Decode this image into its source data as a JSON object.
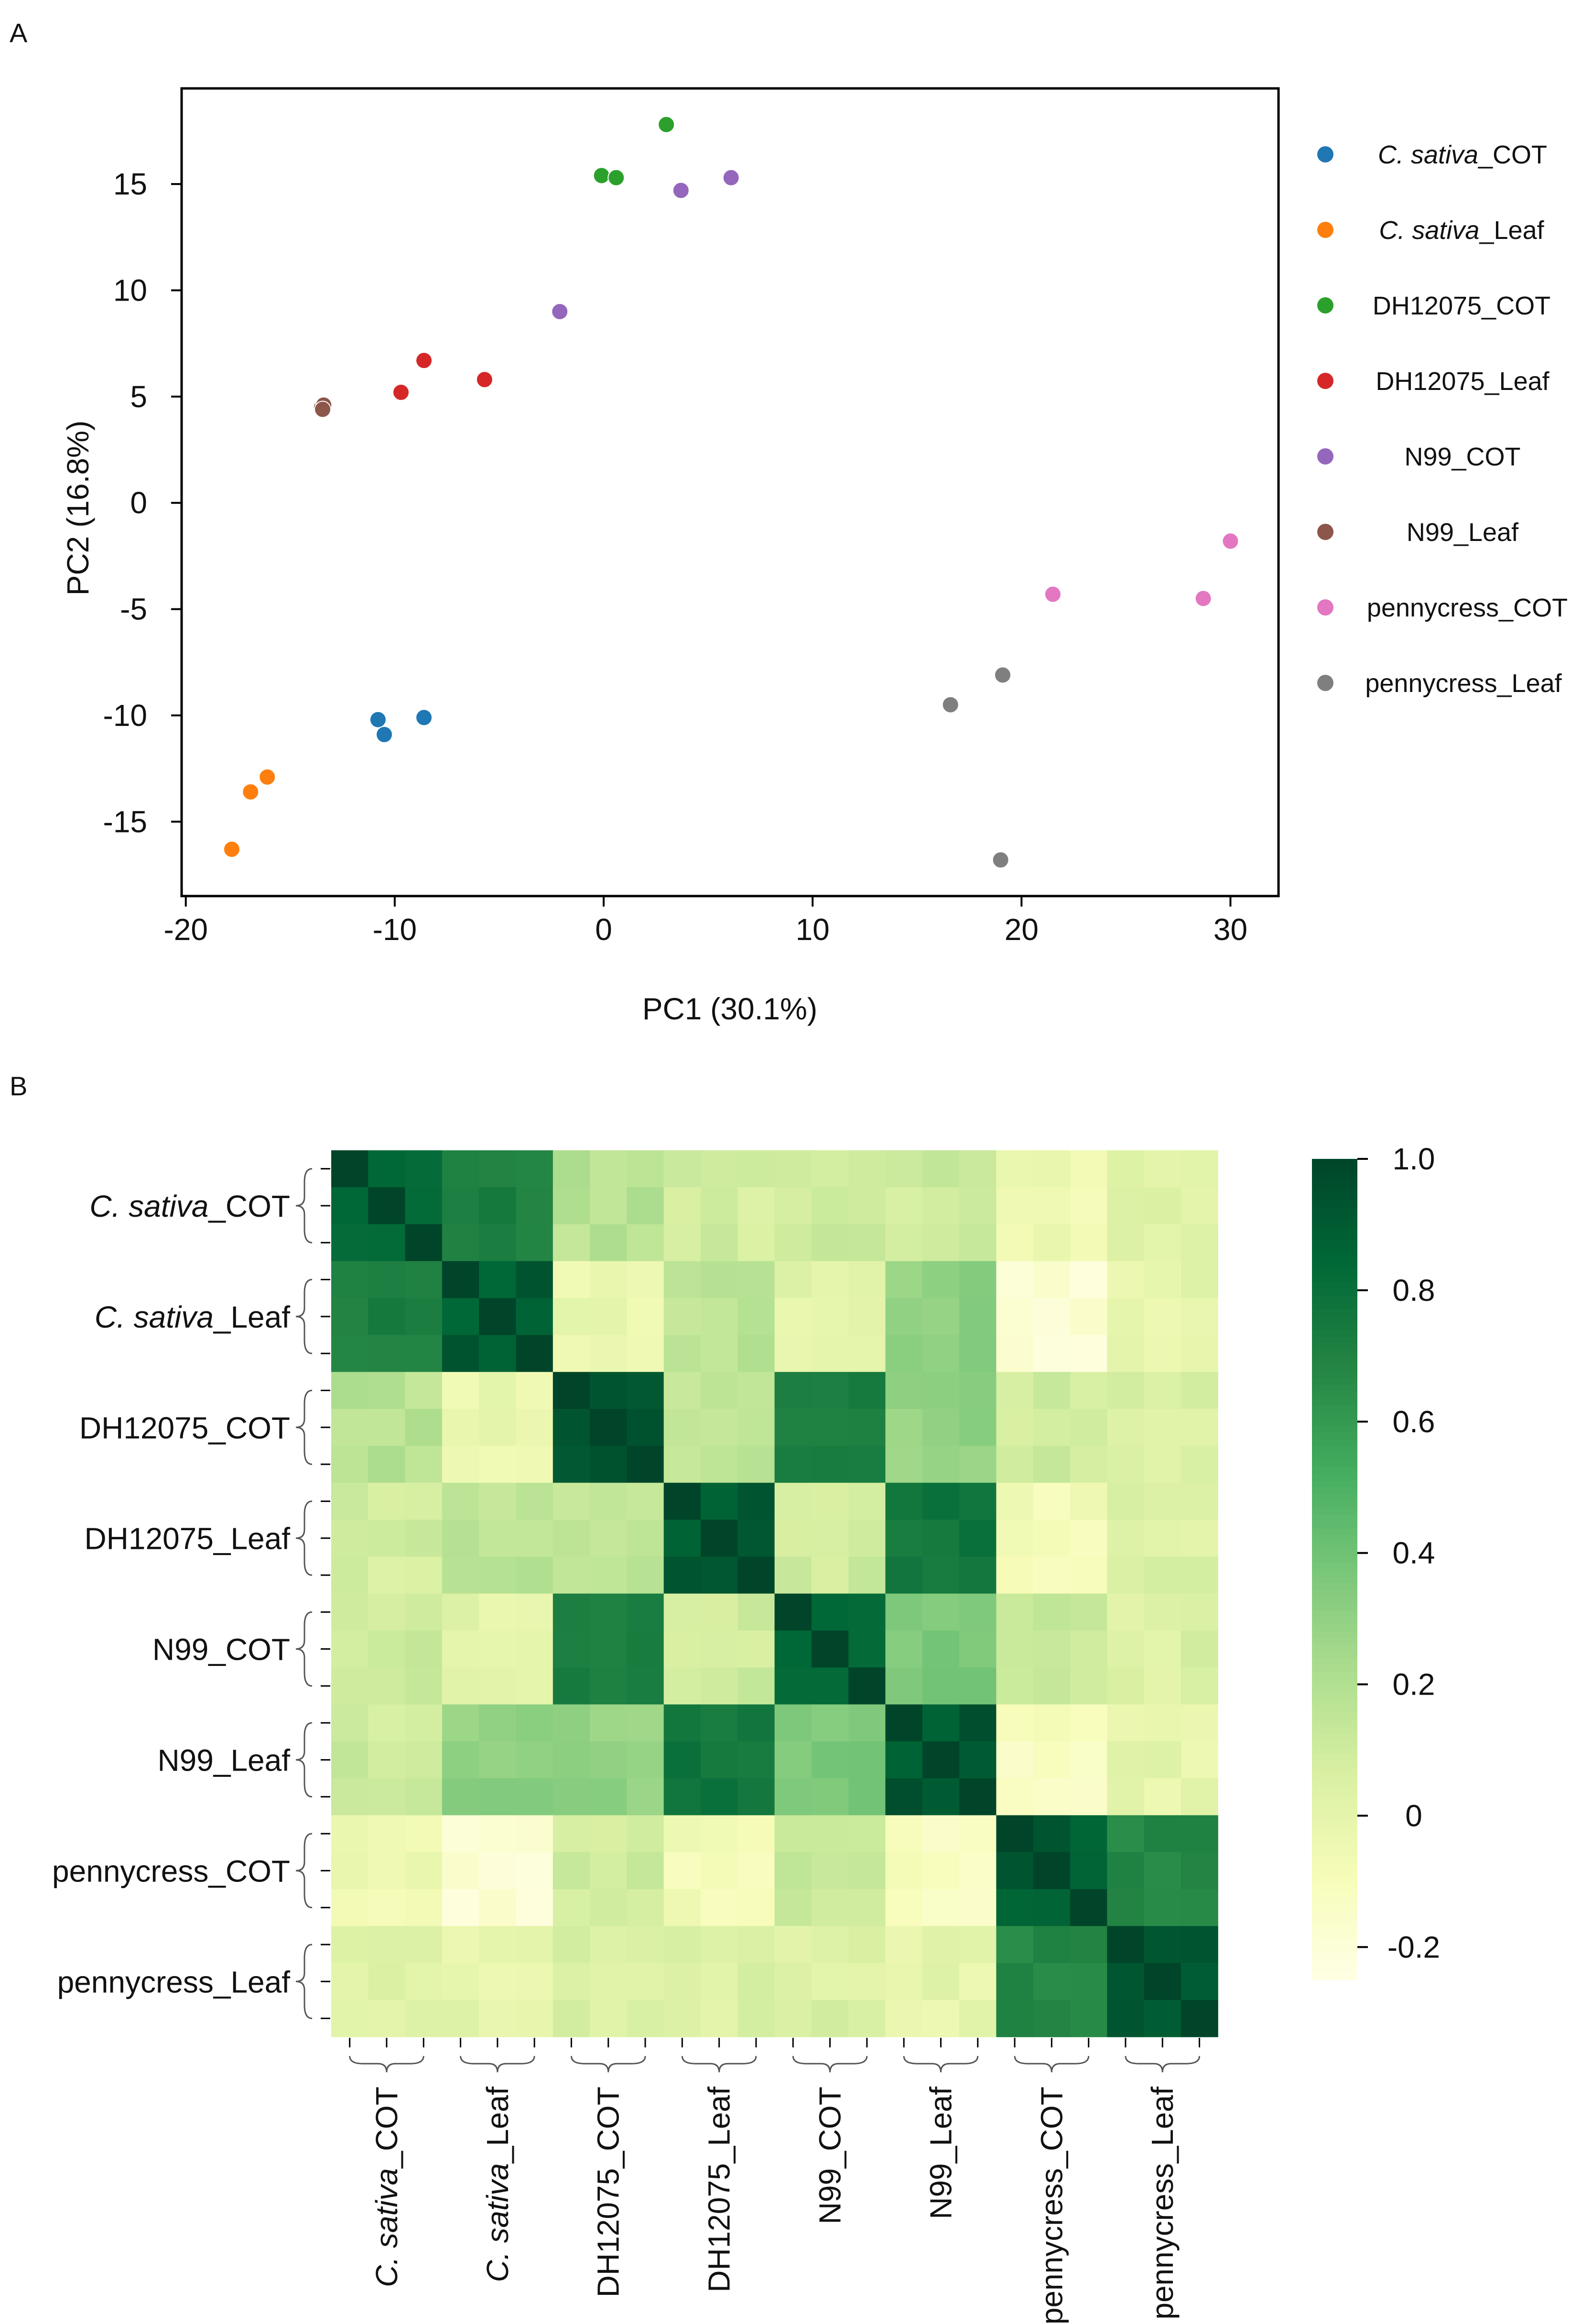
{
  "panels": {
    "a": "A",
    "b": "B"
  },
  "chart_data": [
    {
      "type": "scatter",
      "xlabel": "PC1 (30.1%)",
      "ylabel": "PC2 (16.8%)",
      "xlim": [
        -20.2,
        32.3
      ],
      "ylim": [
        -18.5,
        19.5
      ],
      "xticks": [
        -20,
        -10,
        0,
        10,
        20,
        30
      ],
      "yticks": [
        15,
        10,
        5,
        0,
        -5,
        -10,
        -15
      ],
      "series": [
        {
          "name": "C. sativa_COT",
          "italic": "C. sativa",
          "suffix": "_COT",
          "color": "#1f77b4",
          "points": [
            [
              -10.8,
              -10.2
            ],
            [
              -10.5,
              -10.9
            ],
            [
              -8.6,
              -10.1
            ]
          ]
        },
        {
          "name": "C. sativa_Leaf",
          "italic": "C. sativa",
          "suffix": "_Leaf",
          "color": "#ff7f0e",
          "points": [
            [
              -17.8,
              -16.3
            ],
            [
              -16.9,
              -13.6
            ],
            [
              -16.1,
              -12.9
            ]
          ]
        },
        {
          "name": "DH12075_COT",
          "italic": "",
          "suffix": "DH12075_COT",
          "color": "#2ca02c",
          "points": [
            [
              -0.1,
              15.4
            ],
            [
              0.6,
              15.3
            ],
            [
              3.0,
              17.8
            ]
          ]
        },
        {
          "name": "DH12075_Leaf",
          "italic": "",
          "suffix": "DH12075_Leaf",
          "color": "#d62728",
          "points": [
            [
              -9.7,
              5.2
            ],
            [
              -8.6,
              6.7
            ],
            [
              -5.7,
              5.8
            ]
          ]
        },
        {
          "name": "N99_COT",
          "italic": "",
          "suffix": "N99_COT",
          "color": "#9467bd",
          "points": [
            [
              -2.1,
              9.0
            ],
            [
              3.7,
              14.7
            ],
            [
              6.1,
              15.3
            ]
          ]
        },
        {
          "name": "N99_Leaf",
          "italic": "",
          "suffix": "N99_Leaf",
          "color": "#8c564b",
          "points": [
            [
              -13.5,
              4.5
            ],
            [
              -13.4,
              4.6
            ],
            [
              -13.45,
              4.4
            ]
          ]
        },
        {
          "name": "pennycress_COT",
          "italic": "",
          "suffix": "pennycress_COT",
          "color": "#e377c2",
          "points": [
            [
              21.5,
              -4.3
            ],
            [
              28.7,
              -4.5
            ],
            [
              30.0,
              -1.8
            ]
          ]
        },
        {
          "name": "pennycress_Leaf",
          "italic": "",
          "suffix": "pennycress_Leaf",
          "color": "#7f7f7f",
          "points": [
            [
              16.6,
              -9.5
            ],
            [
              19.1,
              -8.1
            ],
            [
              19.0,
              -16.8
            ]
          ]
        }
      ]
    },
    {
      "type": "heatmap",
      "colormap": "Greens",
      "vmin": -0.25,
      "vmax": 1.0,
      "colorbar_ticks": [
        "1.0",
        "0.8",
        "0.6",
        "0.4",
        "0.2",
        "0",
        "-0.2"
      ],
      "colorbar_tick_values": [
        1.0,
        0.8,
        0.6,
        0.4,
        0.2,
        0,
        -0.2
      ],
      "groups": [
        {
          "label": "C. sativa_COT",
          "italic": "C. sativa",
          "suffix": "_COT"
        },
        {
          "label": "C. sativa_Leaf",
          "italic": "C. sativa",
          "suffix": "_Leaf"
        },
        {
          "label": "DH12075_COT",
          "italic": "",
          "suffix": "DH12075_COT"
        },
        {
          "label": "DH12075_Leaf",
          "italic": "",
          "suffix": "DH12075_Leaf"
        },
        {
          "label": "N99_COT",
          "italic": "",
          "suffix": "N99_COT"
        },
        {
          "label": "N99_Leaf",
          "italic": "",
          "suffix": "N99_Leaf"
        },
        {
          "label": "pennycress_COT",
          "italic": "",
          "suffix": "pennycress_COT"
        },
        {
          "label": "pennycress_Leaf",
          "italic": "",
          "suffix": "pennycress_Leaf"
        }
      ],
      "block_means": [
        [
          0.88,
          0.72,
          0.18,
          0.08,
          0.1,
          0.1,
          -0.05,
          0.02
        ],
        [
          0.72,
          0.9,
          -0.02,
          0.16,
          0.0,
          0.3,
          -0.18,
          0.0
        ],
        [
          0.18,
          -0.02,
          0.9,
          0.14,
          0.74,
          0.3,
          0.1,
          0.05
        ],
        [
          0.08,
          0.16,
          0.14,
          0.92,
          0.1,
          0.76,
          -0.08,
          0.05
        ],
        [
          0.1,
          0.0,
          0.74,
          0.1,
          0.88,
          0.35,
          0.12,
          0.05
        ],
        [
          0.1,
          0.3,
          0.3,
          0.76,
          0.35,
          0.9,
          -0.12,
          0.0
        ],
        [
          -0.05,
          -0.18,
          0.1,
          -0.08,
          0.12,
          -0.12,
          0.9,
          0.68
        ],
        [
          0.02,
          0.0,
          0.05,
          0.05,
          0.05,
          0.0,
          0.68,
          0.92
        ]
      ],
      "diagonal": 1.0
    }
  ]
}
